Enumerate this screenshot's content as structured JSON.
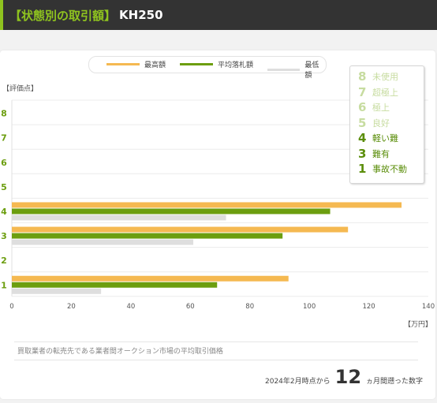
{
  "header": {
    "title_bracket": "【状態別の取引額】",
    "title_model": "KH250"
  },
  "legend": {
    "items": [
      {
        "label": "最高額",
        "color": "#f5b951"
      },
      {
        "label": "平均落札額",
        "color": "#6c9e0f"
      },
      {
        "label": "最低額",
        "color": "#dedede"
      }
    ]
  },
  "axis": {
    "y_unit": "【評価点】",
    "x_unit": "【万円】"
  },
  "condition_box": {
    "items": [
      {
        "num": "8",
        "label": "未使用",
        "active": false
      },
      {
        "num": "7",
        "label": "超極上",
        "active": false
      },
      {
        "num": "6",
        "label": "極上",
        "active": false
      },
      {
        "num": "5",
        "label": "良好",
        "active": false
      },
      {
        "num": "4",
        "label": "軽い難",
        "active": true
      },
      {
        "num": "3",
        "label": "難有",
        "active": true
      },
      {
        "num": "1",
        "label": "事故不動",
        "active": true
      }
    ],
    "active_color": "#5b8e0b",
    "inactive_color": "#c7dca0"
  },
  "footer": {
    "note": "買取業者の転売先である業者間オークション市場の平均取引価格",
    "period_prefix": "2024年2月時点から",
    "period_months": "12",
    "period_suffix": "ヵ月間遡った数字"
  },
  "chart_data": {
    "type": "bar",
    "orientation": "horizontal",
    "categories": [
      "8",
      "7",
      "6",
      "5",
      "4",
      "3",
      "2",
      "1"
    ],
    "series": [
      {
        "name": "最高額",
        "color": "#f5b951",
        "values": [
          null,
          null,
          null,
          null,
          131,
          113,
          null,
          93
        ]
      },
      {
        "name": "平均落札額",
        "color": "#6c9e0f",
        "values": [
          null,
          null,
          null,
          null,
          107,
          91,
          null,
          69
        ]
      },
      {
        "name": "最低額",
        "color": "#dedede",
        "values": [
          null,
          null,
          null,
          null,
          72,
          61,
          null,
          30
        ]
      }
    ],
    "xlim": [
      0,
      140
    ],
    "xticks": [
      0,
      20,
      40,
      60,
      80,
      100,
      120,
      140
    ],
    "xlabel": "【万円】",
    "ylabel": "【評価点】",
    "grid": true,
    "legend_position": "top"
  }
}
